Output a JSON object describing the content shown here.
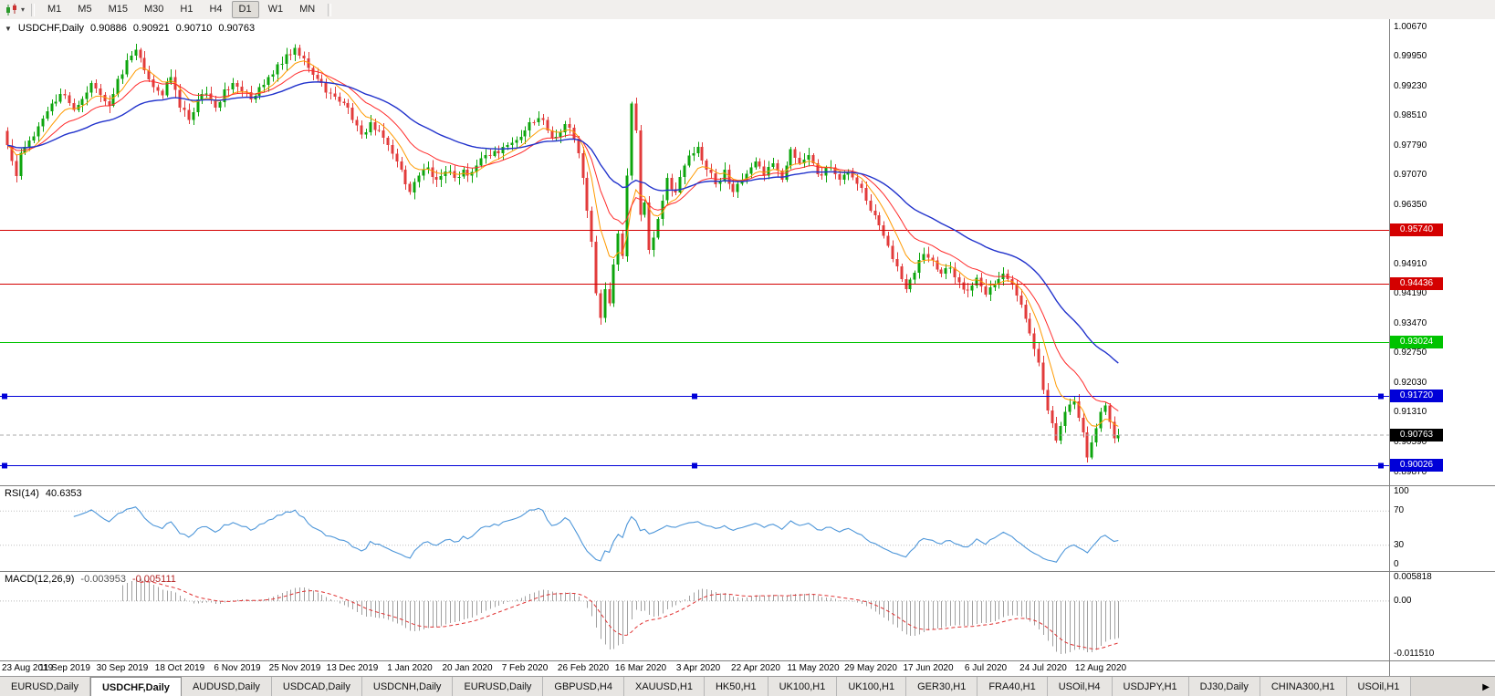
{
  "toolbar": {
    "timeframes": [
      "M1",
      "M5",
      "M15",
      "M30",
      "H1",
      "H4",
      "D1",
      "W1",
      "MN"
    ],
    "active_timeframe": "D1",
    "dropdown_icon": "▾",
    "chart_type_icon": "candlestick-chart"
  },
  "chart": {
    "title": "USDCHF,Daily",
    "collapse_icon": "▼",
    "ohlc": {
      "open": "0.90886",
      "high": "0.90921",
      "low": "0.90710",
      "close": "0.90763"
    },
    "price_axis": [
      "1.00670",
      "0.99950",
      "0.99230",
      "0.98510",
      "0.97790",
      "0.97070",
      "0.96350",
      "0.95630",
      "0.94910",
      "0.94190",
      "0.93470",
      "0.92750",
      "0.92030",
      "0.91310",
      "0.90590",
      "0.89870"
    ],
    "hlines": [
      {
        "label": "0.95740",
        "price": 0.9574,
        "color": "#d40000",
        "handles": false
      },
      {
        "label": "0.94436",
        "price": 0.94436,
        "color": "#d40000",
        "handles": false
      },
      {
        "label": "0.93024",
        "price": 0.93024,
        "color": "#00c300",
        "handles": false
      },
      {
        "label": "0.91720",
        "price": 0.9172,
        "color": "#0000d8",
        "handles": true
      },
      {
        "label": "0.90026",
        "price": 0.90026,
        "color": "#0000d8",
        "handles": true
      }
    ],
    "current_price": {
      "label": "0.90763",
      "price": 0.90763,
      "color": "#000000"
    },
    "dates": [
      "23 Aug 2019",
      "11 Sep 2019",
      "30 Sep 2019",
      "18 Oct 2019",
      "6 Nov 2019",
      "25 Nov 2019",
      "13 Dec 2019",
      "1 Jan 2020",
      "20 Jan 2020",
      "7 Feb 2020",
      "26 Feb 2020",
      "16 Mar 2020",
      "3 Apr 2020",
      "22 Apr 2020",
      "11 May 2020",
      "29 May 2020",
      "17 Jun 2020",
      "6 Jul 2020",
      "24 Jul 2020",
      "12 Aug 2020"
    ]
  },
  "rsi": {
    "label": "RSI(14)",
    "value": "40.6353",
    "axis_labels": [
      "100",
      "70",
      "30",
      "0"
    ],
    "levels": [
      70,
      30
    ],
    "range": [
      0,
      100
    ],
    "color": "#4d96d9"
  },
  "macd": {
    "label": "MACD(12,26,9)",
    "main_value": "-0.003953",
    "signal_value": "-0.005111",
    "axis_labels": [
      "0.005818",
      "0.00",
      "-0.011510"
    ],
    "range": [
      -0.01151,
      0.005818
    ],
    "histogram_color": "#a0a0a0",
    "signal_color": "#e03030"
  },
  "tabs": {
    "items": [
      "EURUSD,Daily",
      "USDCHF,Daily",
      "AUDUSD,Daily",
      "USDCAD,Daily",
      "USDCNH,Daily",
      "EURUSD,Daily",
      "GBPUSD,H4",
      "XAUUSD,H1",
      "HK50,H1",
      "UK100,H1",
      "UK100,H1",
      "GER30,H1",
      "FRA40,H1",
      "USOil,H4",
      "USDJPY,H1",
      "DJ30,Daily",
      "CHINA300,H1",
      "USOil,H1"
    ],
    "active_index": 1,
    "scroll_icon": "▶"
  },
  "chart_data": {
    "type": "candlestick",
    "symbol": "USDCHF",
    "timeframe": "Daily",
    "title": "USDCHF,Daily",
    "candle_count": 252,
    "price_range": [
      0.8955,
      1.0086
    ],
    "up_color": "#0da50d",
    "down_color": "#e23b3b",
    "x_tick_indices": [
      0,
      13,
      26,
      39,
      52,
      65,
      78,
      91,
      104,
      117,
      130,
      143,
      156,
      169,
      182,
      195,
      208,
      221,
      234,
      247
    ],
    "x_tick_labels": [
      "23 Aug 2019",
      "11 Sep 2019",
      "30 Sep 2019",
      "18 Oct 2019",
      "6 Nov 2019",
      "25 Nov 2019",
      "13 Dec 2019",
      "1 Jan 2020",
      "20 Jan 2020",
      "7 Feb 2020",
      "26 Feb 2020",
      "16 Mar 2020",
      "3 Apr 2020",
      "22 Apr 2020",
      "11 May 2020",
      "29 May 2020",
      "17 Jun 2020",
      "6 Jul 2020",
      "24 Jul 2020",
      "12 Aug 2020"
    ],
    "close_anchors": [
      [
        0,
        0.978
      ],
      [
        1,
        0.9742
      ],
      [
        2,
        0.9705
      ],
      [
        3,
        0.9762
      ],
      [
        5,
        0.9792
      ],
      [
        7,
        0.9826
      ],
      [
        9,
        0.9862
      ],
      [
        11,
        0.9886
      ],
      [
        13,
        0.9901
      ],
      [
        15,
        0.9866
      ],
      [
        17,
        0.9892
      ],
      [
        19,
        0.9931
      ],
      [
        21,
        0.9902
      ],
      [
        23,
        0.9876
      ],
      [
        25,
        0.9941
      ],
      [
        27,
        0.9986
      ],
      [
        29,
        1.0012
      ],
      [
        31,
        0.9962
      ],
      [
        33,
        0.9921
      ],
      [
        35,
        0.9901
      ],
      [
        37,
        0.9946
      ],
      [
        39,
        0.9871
      ],
      [
        41,
        0.9841
      ],
      [
        43,
        0.9891
      ],
      [
        45,
        0.9906
      ],
      [
        47,
        0.9871
      ],
      [
        49,
        0.9916
      ],
      [
        51,
        0.9931
      ],
      [
        53,
        0.9911
      ],
      [
        55,
        0.9891
      ],
      [
        57,
        0.9921
      ],
      [
        59,
        0.9946
      ],
      [
        61,
        0.9976
      ],
      [
        63,
        1.0001
      ],
      [
        65,
        1.0016
      ],
      [
        67,
        0.9991
      ],
      [
        69,
        0.9951
      ],
      [
        71,
        0.9931
      ],
      [
        73,
        0.9906
      ],
      [
        75,
        0.9886
      ],
      [
        77,
        0.9871
      ],
      [
        78,
        0.9841
      ],
      [
        80,
        0.9806
      ],
      [
        82,
        0.9836
      ],
      [
        84,
        0.9816
      ],
      [
        86,
        0.9781
      ],
      [
        88,
        0.9741
      ],
      [
        90,
        0.9686
      ],
      [
        91,
        0.9666
      ],
      [
        93,
        0.9706
      ],
      [
        95,
        0.9726
      ],
      [
        97,
        0.9696
      ],
      [
        99,
        0.9716
      ],
      [
        101,
        0.9701
      ],
      [
        103,
        0.9721
      ],
      [
        104,
        0.9706
      ],
      [
        106,
        0.9731
      ],
      [
        108,
        0.9756
      ],
      [
        110,
        0.9766
      ],
      [
        112,
        0.9776
      ],
      [
        114,
        0.9786
      ],
      [
        116,
        0.9801
      ],
      [
        118,
        0.9836
      ],
      [
        120,
        0.9846
      ],
      [
        122,
        0.9816
      ],
      [
        124,
        0.9801
      ],
      [
        126,
        0.9831
      ],
      [
        128,
        0.9796
      ],
      [
        129,
        0.9761
      ],
      [
        130,
        0.9701
      ],
      [
        131,
        0.9621
      ],
      [
        132,
        0.9546
      ],
      [
        133,
        0.9421
      ],
      [
        134,
        0.9361
      ],
      [
        135,
        0.9431
      ],
      [
        136,
        0.9396
      ],
      [
        137,
        0.9491
      ],
      [
        138,
        0.9566
      ],
      [
        139,
        0.9511
      ],
      [
        140,
        0.9706
      ],
      [
        141,
        0.9881
      ],
      [
        142,
        0.9816
      ],
      [
        143,
        0.9611
      ],
      [
        144,
        0.9641
      ],
      [
        145,
        0.9526
      ],
      [
        146,
        0.9556
      ],
      [
        147,
        0.9601
      ],
      [
        148,
        0.9646
      ],
      [
        149,
        0.9701
      ],
      [
        151,
        0.9666
      ],
      [
        153,
        0.9731
      ],
      [
        155,
        0.9761
      ],
      [
        156,
        0.9776
      ],
      [
        158,
        0.9721
      ],
      [
        160,
        0.9686
      ],
      [
        162,
        0.9721
      ],
      [
        164,
        0.9666
      ],
      [
        166,
        0.9696
      ],
      [
        168,
        0.9726
      ],
      [
        169,
        0.9741
      ],
      [
        171,
        0.9706
      ],
      [
        173,
        0.9736
      ],
      [
        175,
        0.9696
      ],
      [
        177,
        0.9771
      ],
      [
        179,
        0.9736
      ],
      [
        181,
        0.9756
      ],
      [
        182,
        0.9736
      ],
      [
        184,
        0.9706
      ],
      [
        186,
        0.9726
      ],
      [
        188,
        0.9696
      ],
      [
        190,
        0.9716
      ],
      [
        192,
        0.9686
      ],
      [
        194,
        0.9646
      ],
      [
        195,
        0.9621
      ],
      [
        197,
        0.9586
      ],
      [
        199,
        0.9536
      ],
      [
        201,
        0.9486
      ],
      [
        203,
        0.9431
      ],
      [
        205,
        0.9471
      ],
      [
        207,
        0.9516
      ],
      [
        209,
        0.9501
      ],
      [
        211,
        0.9468
      ],
      [
        213,
        0.9483
      ],
      [
        215,
        0.9448
      ],
      [
        217,
        0.9428
      ],
      [
        219,
        0.9458
      ],
      [
        221,
        0.9418
      ],
      [
        223,
        0.9443
      ],
      [
        225,
        0.9468
      ],
      [
        227,
        0.9443
      ],
      [
        229,
        0.9393
      ],
      [
        231,
        0.9323
      ],
      [
        233,
        0.9253
      ],
      [
        234,
        0.9186
      ],
      [
        235,
        0.9136
      ],
      [
        236,
        0.9106
      ],
      [
        237,
        0.9063
      ],
      [
        238,
        0.9099
      ],
      [
        239,
        0.9133
      ],
      [
        240,
        0.9151
      ],
      [
        241,
        0.9159
      ],
      [
        242,
        0.9119
      ],
      [
        243,
        0.9083
      ],
      [
        244,
        0.9023
      ],
      [
        245,
        0.9059
      ],
      [
        246,
        0.9093
      ],
      [
        247,
        0.9133
      ],
      [
        248,
        0.9149
      ],
      [
        249,
        0.9109
      ],
      [
        250,
        0.9069
      ],
      [
        251,
        0.90763
      ]
    ],
    "overlays": [
      {
        "name": "EMA-fast",
        "period": 8,
        "color": "#ff9a00"
      },
      {
        "name": "EMA-mid",
        "period": 17,
        "color": "#ff2a2a"
      },
      {
        "name": "EMA-slow",
        "period": 40,
        "color": "#2233cc"
      }
    ],
    "indicators": [
      {
        "name": "RSI",
        "period": 14,
        "value": 40.6353
      },
      {
        "name": "MACD",
        "fast": 12,
        "slow": 26,
        "signal": 9,
        "value": -0.003953,
        "signal_value": -0.005111
      }
    ],
    "support_resistance_levels": [
      0.9574,
      0.94436,
      0.93024,
      0.9172,
      0.90026
    ],
    "last_close": 0.90763,
    "displayed_ohlc": {
      "open": 0.90886,
      "high": 0.90921,
      "low": 0.9071,
      "close": 0.90763
    }
  }
}
